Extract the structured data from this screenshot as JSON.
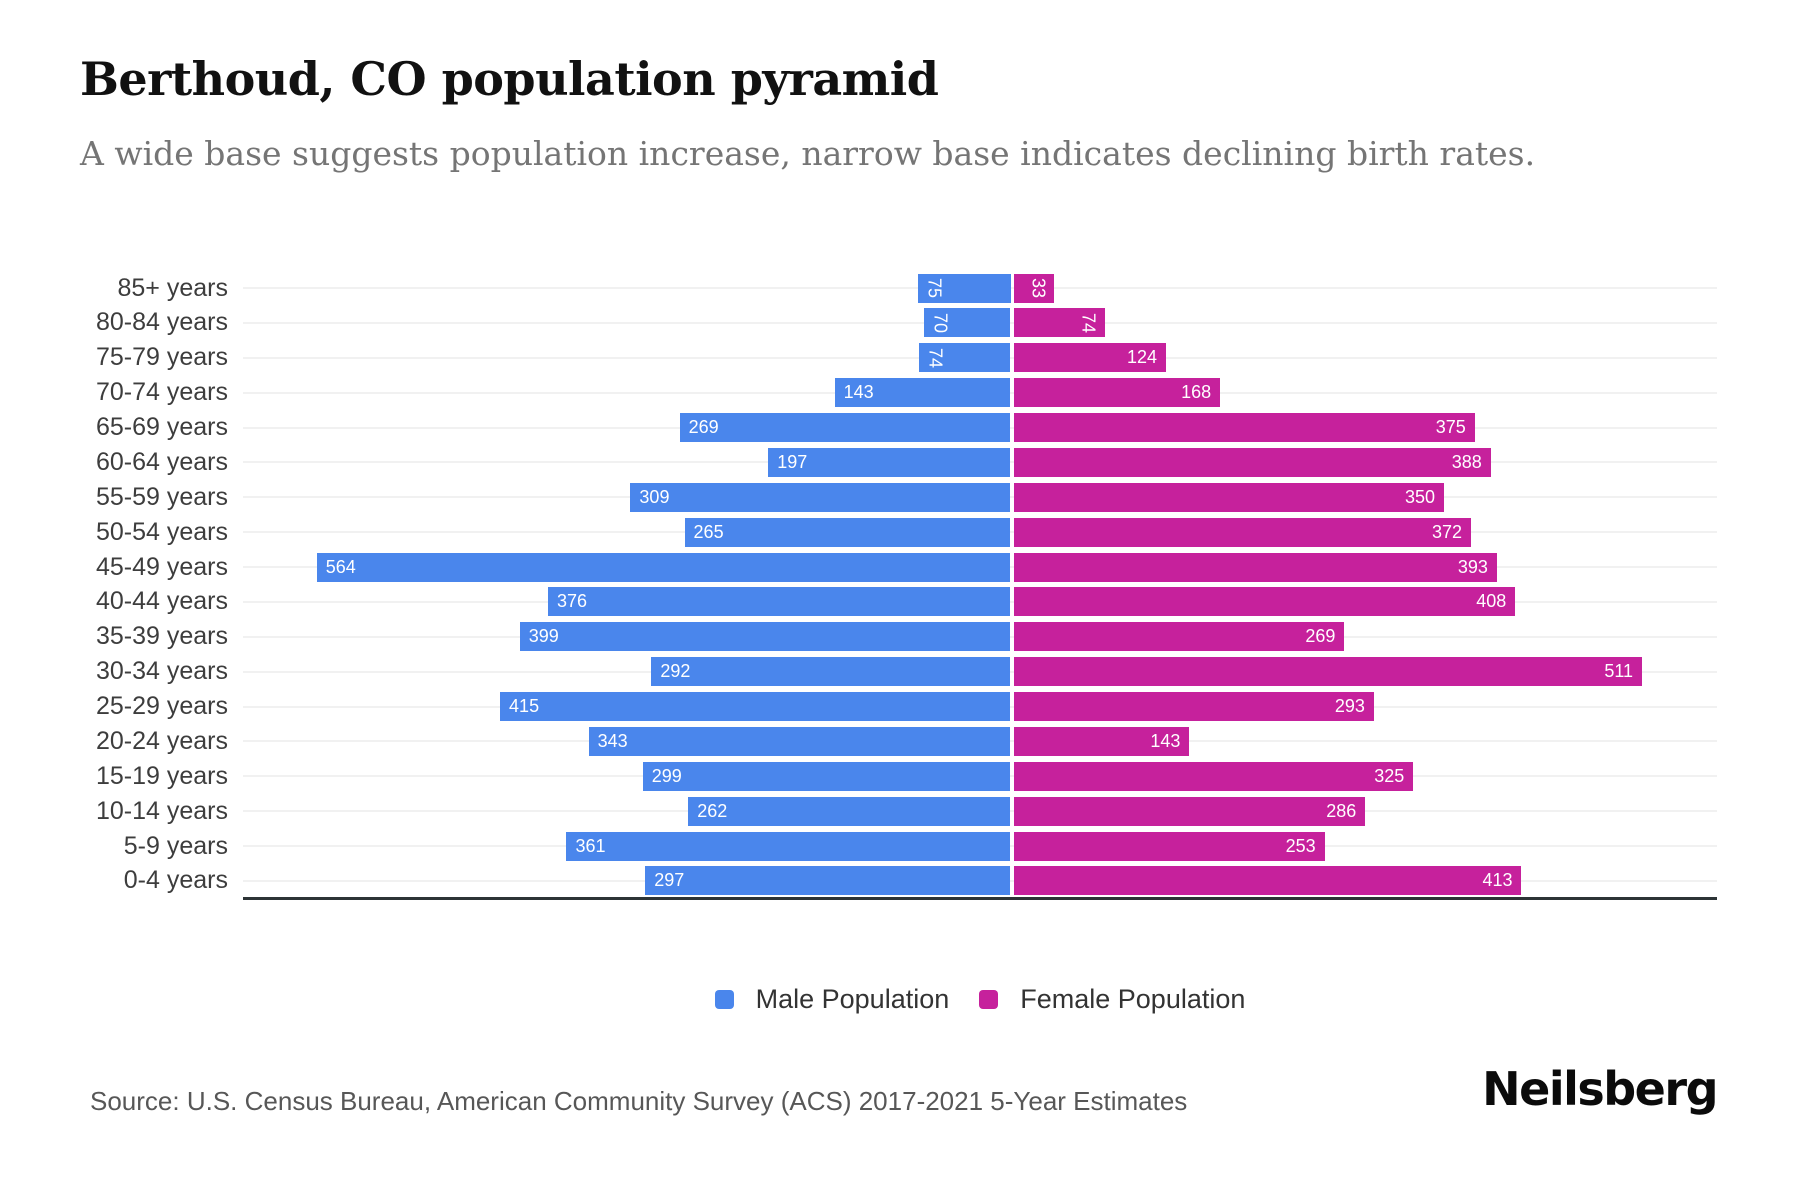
{
  "header": {
    "title": "Berthoud, CO population pyramid",
    "subtitle": "A wide base suggests population increase, narrow base indicates declining birth rates."
  },
  "legend": {
    "male_label": "Male Population",
    "female_label": "Female Population"
  },
  "footer": {
    "source": "Source: U.S. Census Bureau, American Community Survey (ACS) 2017-2021 5-Year Estimates",
    "brand": "Neilsberg"
  },
  "colors": {
    "male": "#4a86ec",
    "female": "#c6219c",
    "gridline": "#f1f1f1",
    "axis": "#2d3436",
    "title": "#111111",
    "subtitle": "#757575",
    "row_label": "#3d3d3d",
    "value_text": "#ffffff"
  },
  "chart_data": {
    "type": "bar",
    "variant": "population-pyramid",
    "title": "Berthoud, CO population pyramid",
    "subtitle": "A wide base suggests population increase, narrow base indicates declining birth rates.",
    "xlabel": "",
    "ylabel": "",
    "grid": true,
    "legend_position": "bottom",
    "categories": [
      "85+ years",
      "80-84 years",
      "75-79 years",
      "70-74 years",
      "65-69 years",
      "60-64 years",
      "55-59 years",
      "50-54 years",
      "45-49 years",
      "40-44 years",
      "35-39 years",
      "30-34 years",
      "25-29 years",
      "20-24 years",
      "15-19 years",
      "10-14 years",
      "5-9 years",
      "0-4 years"
    ],
    "series": [
      {
        "name": "Male Population",
        "color": "#4a86ec",
        "direction": "left",
        "values": [
          75,
          70,
          74,
          143,
          269,
          197,
          309,
          265,
          564,
          376,
          399,
          292,
          415,
          343,
          299,
          262,
          361,
          297
        ]
      },
      {
        "name": "Female Population",
        "color": "#c6219c",
        "direction": "right",
        "values": [
          33,
          74,
          124,
          168,
          375,
          388,
          350,
          372,
          393,
          408,
          269,
          511,
          293,
          143,
          325,
          286,
          253,
          413
        ]
      }
    ]
  }
}
